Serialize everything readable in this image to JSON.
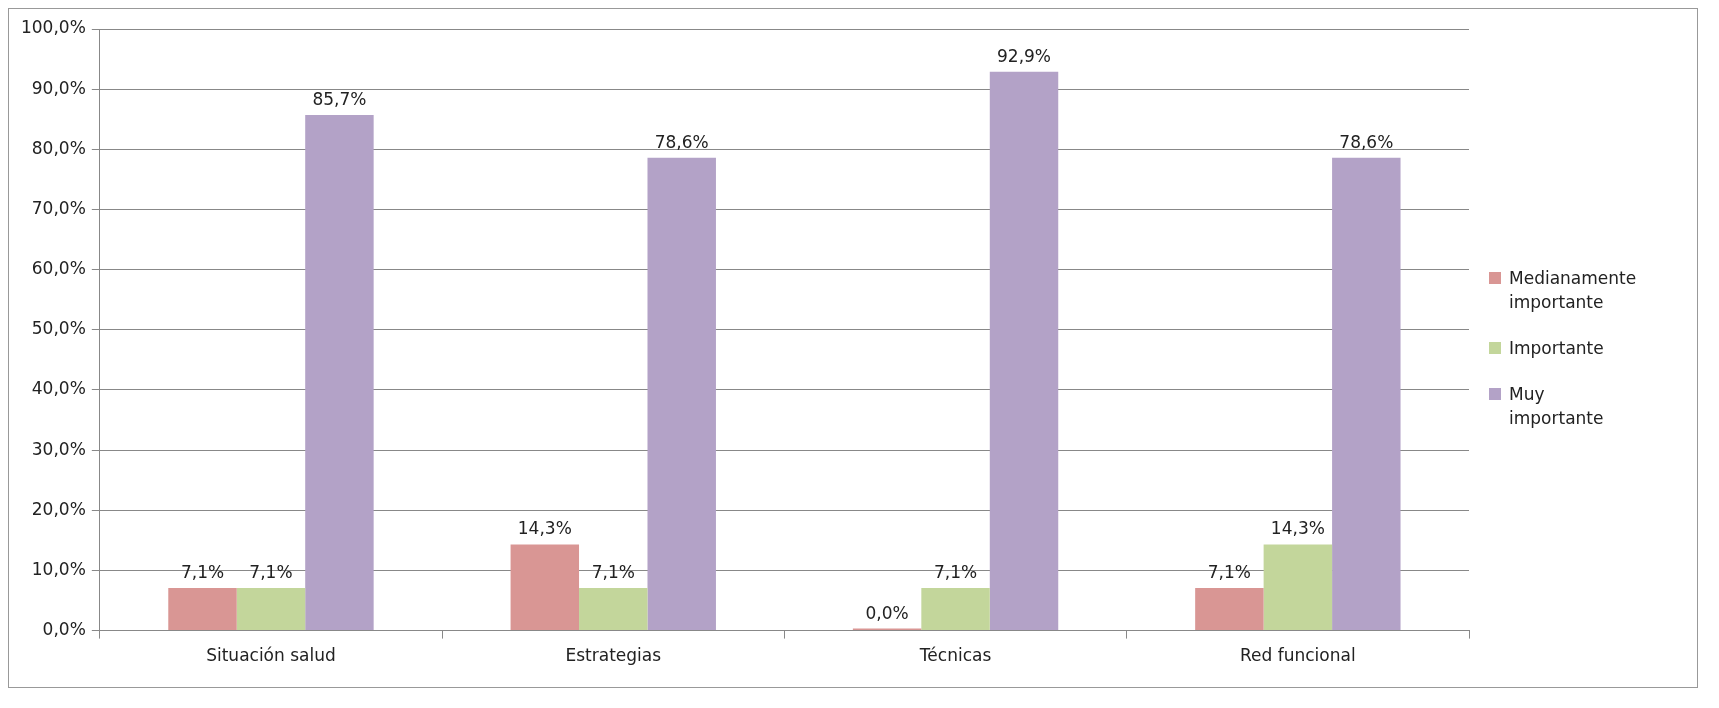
{
  "chart_data": {
    "type": "bar",
    "categories": [
      "Situación salud",
      "Estrategias",
      "Técnicas",
      "Red funcional"
    ],
    "series": [
      {
        "name": "Medianamente importante",
        "color": "#d99694",
        "values": [
          7.1,
          14.3,
          0.0,
          7.1
        ],
        "value_labels": [
          "7,1%",
          "14,3%",
          "0,0%",
          "7,1%"
        ]
      },
      {
        "name": "Importante",
        "color": "#c3d69b",
        "values": [
          7.1,
          7.1,
          7.1,
          14.3
        ],
        "value_labels": [
          "7,1%",
          "7,1%",
          "7,1%",
          "14,3%"
        ]
      },
      {
        "name": "Muy importante",
        "color": "#b3a2c7",
        "values": [
          85.7,
          78.6,
          92.9,
          78.6
        ],
        "value_labels": [
          "85,7%",
          "78,6%",
          "92,9%",
          "78,6%"
        ]
      }
    ],
    "ylim": [
      0,
      100
    ],
    "yticks": [
      {
        "value": 0,
        "label": "0,0%"
      },
      {
        "value": 10,
        "label": "10,0%"
      },
      {
        "value": 20,
        "label": "20,0%"
      },
      {
        "value": 30,
        "label": "30,0%"
      },
      {
        "value": 40,
        "label": "40,0%"
      },
      {
        "value": 50,
        "label": "50,0%"
      },
      {
        "value": 60,
        "label": "60,0%"
      },
      {
        "value": 70,
        "label": "70,0%"
      },
      {
        "value": 80,
        "label": "80,0%"
      },
      {
        "value": 90,
        "label": "90,0%"
      },
      {
        "value": 100,
        "label": "100,0%"
      }
    ],
    "grid": "y",
    "legend": "right"
  }
}
